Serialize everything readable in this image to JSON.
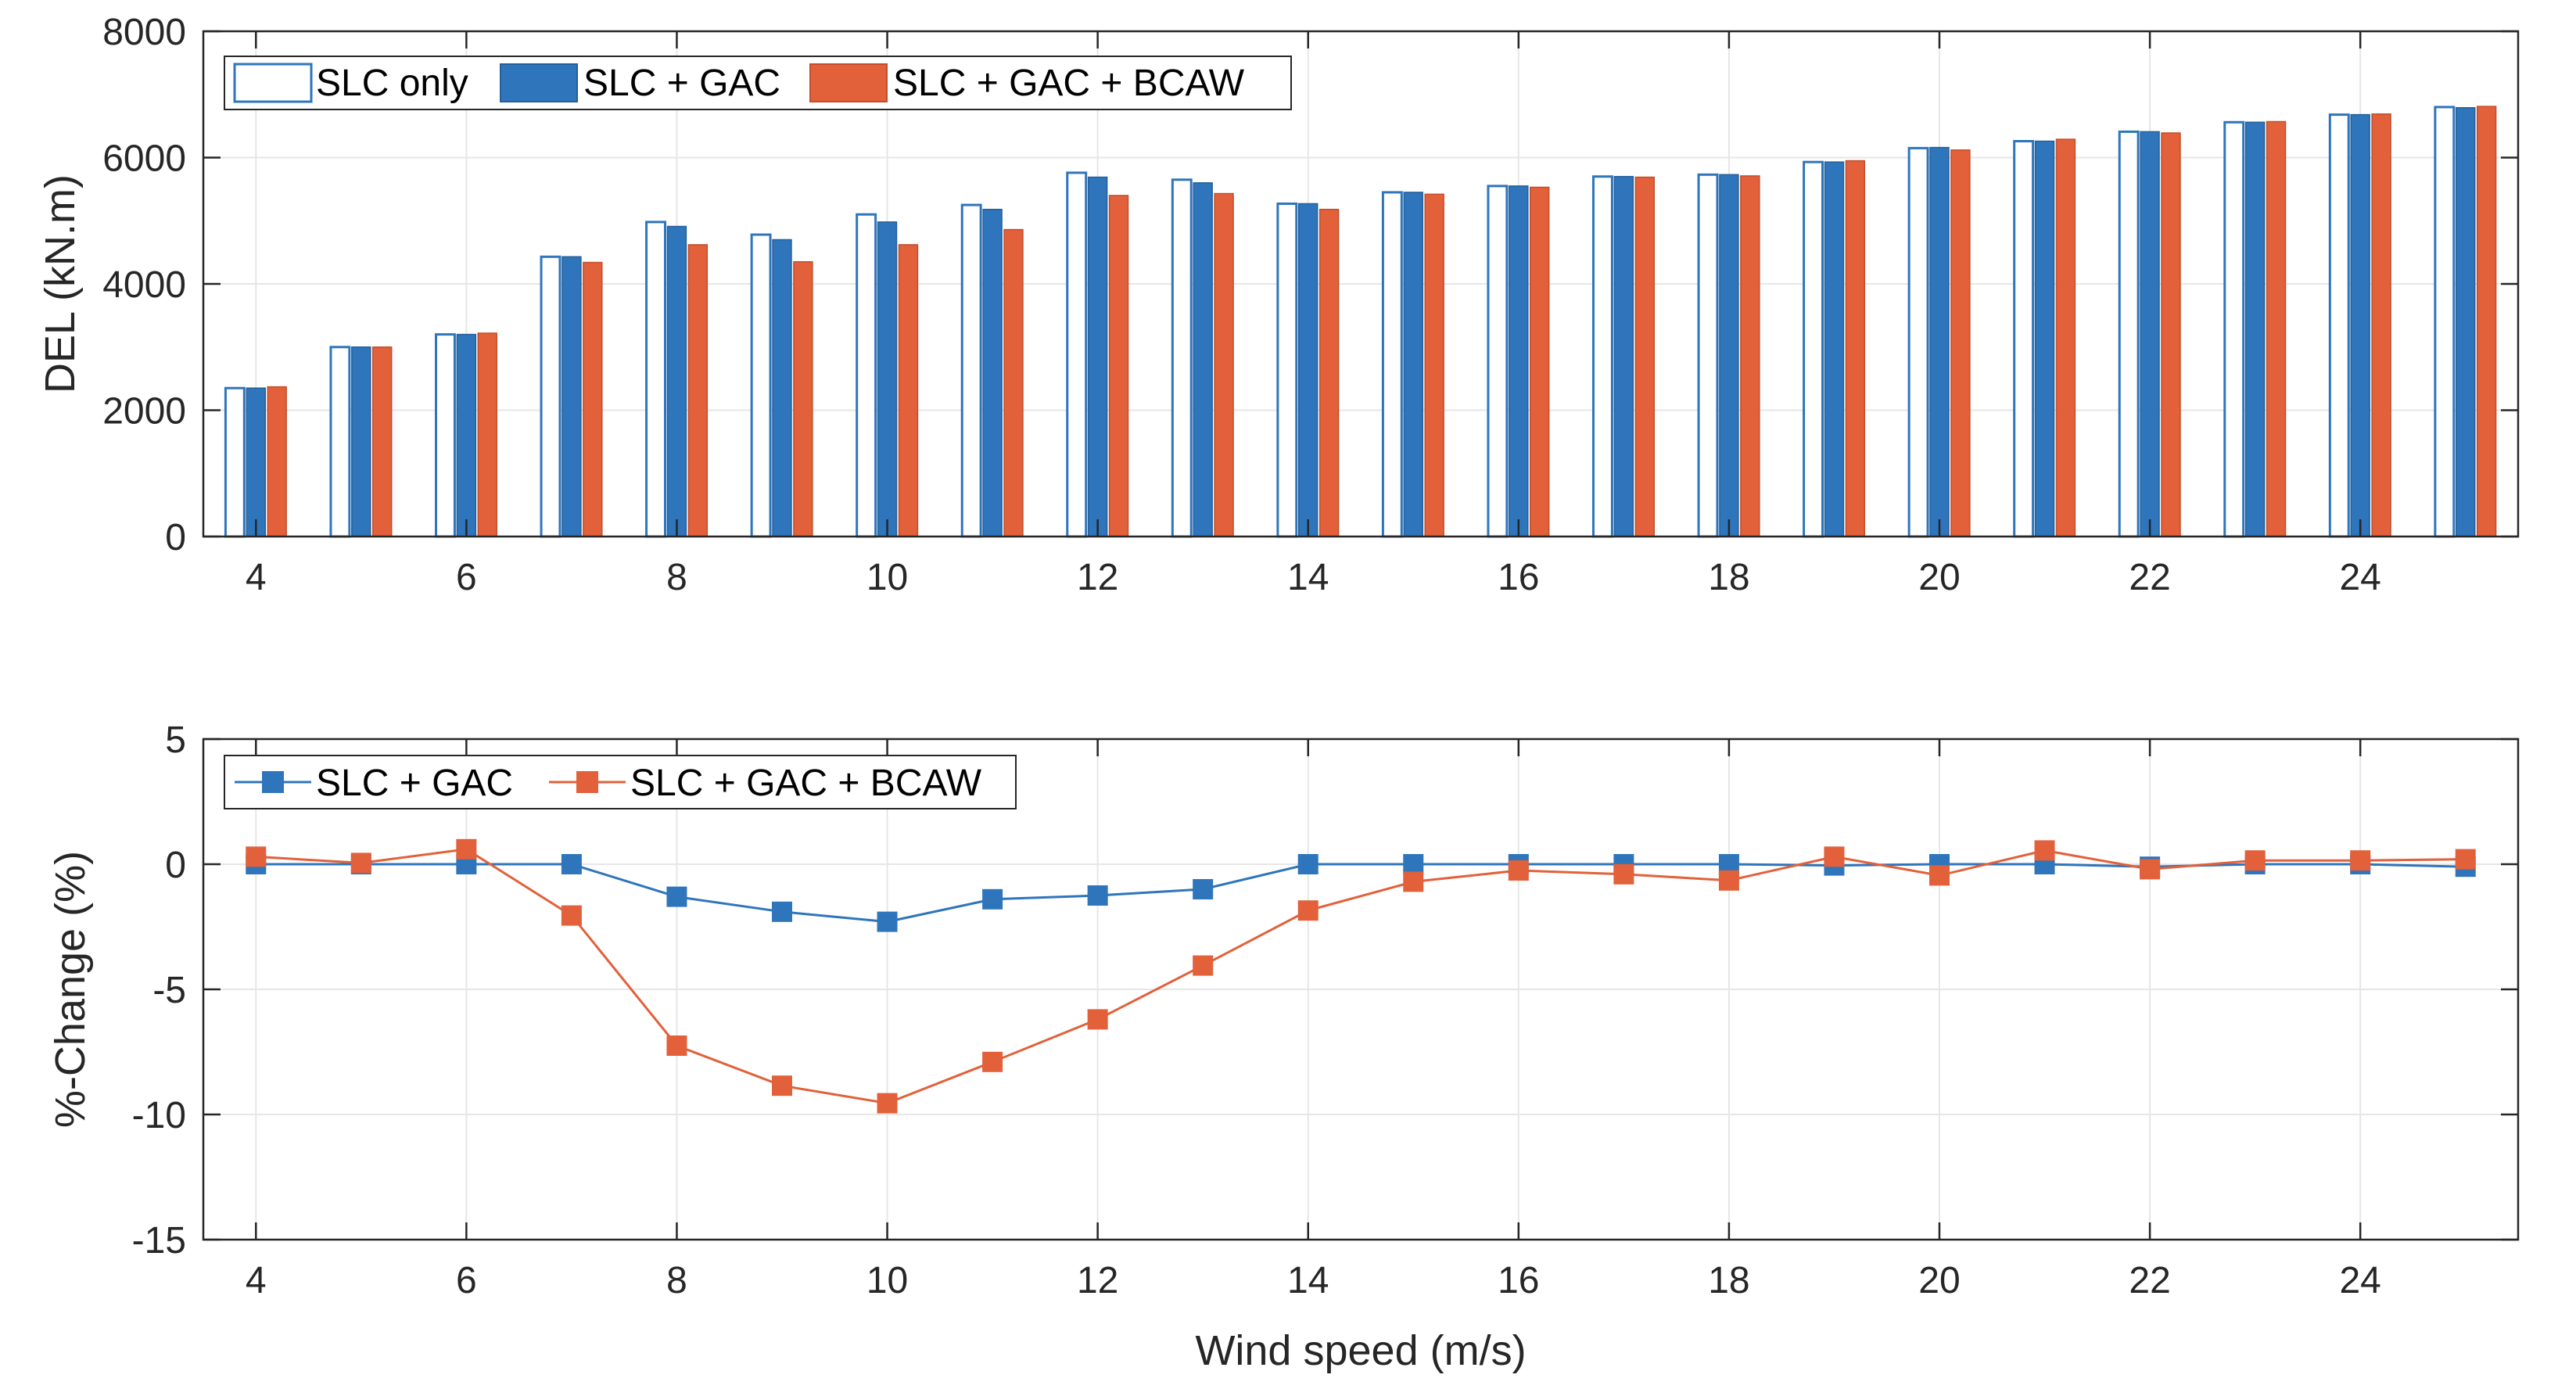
{
  "colors": {
    "slc_gac": "#2E75BC",
    "slc_gac_bcaw": "#E2603A",
    "axis": "#262626",
    "grid": "#E6E6E6"
  },
  "chart_data": [
    {
      "type": "bar",
      "title": "",
      "xlabel": "",
      "ylabel": "DEL (kN.m)",
      "xlim": [
        3.5,
        25.5
      ],
      "ylim": [
        0,
        8000
      ],
      "x_ticks": [
        4,
        6,
        8,
        10,
        12,
        14,
        16,
        18,
        20,
        22,
        24
      ],
      "y_ticks": [
        0,
        2000,
        4000,
        6000,
        8000
      ],
      "grid": true,
      "legend_position": "top-left",
      "categories": [
        4,
        5,
        6,
        7,
        8,
        9,
        10,
        11,
        12,
        13,
        14,
        15,
        16,
        17,
        18,
        19,
        20,
        21,
        22,
        23,
        24,
        25
      ],
      "series": [
        {
          "name": "SLC only",
          "style": "outline",
          "values": [
            2350,
            3000,
            3200,
            4430,
            4980,
            4780,
            5100,
            5250,
            5760,
            5650,
            5270,
            5450,
            5550,
            5700,
            5730,
            5930,
            6150,
            6260,
            6410,
            6560,
            6680,
            6800
          ]
        },
        {
          "name": "SLC + GAC",
          "style": "filled-blue",
          "values": [
            2350,
            3000,
            3200,
            4430,
            4910,
            4700,
            4980,
            5180,
            5690,
            5600,
            5270,
            5450,
            5550,
            5700,
            5730,
            5930,
            6160,
            6260,
            6410,
            6560,
            6680,
            6790
          ]
        },
        {
          "name": "SLC + GAC + BCAW",
          "style": "filled-orange",
          "values": [
            2370,
            3000,
            3220,
            4340,
            4620,
            4350,
            4620,
            4860,
            5400,
            5430,
            5180,
            5420,
            5530,
            5690,
            5710,
            5950,
            6120,
            6290,
            6390,
            6570,
            6690,
            6810
          ]
        }
      ]
    },
    {
      "type": "line",
      "title": "",
      "xlabel": "Wind speed (m/s)",
      "ylabel": "%-Change (%)",
      "xlim": [
        3.5,
        25.5
      ],
      "ylim": [
        -15,
        5
      ],
      "x_ticks": [
        4,
        6,
        8,
        10,
        12,
        14,
        16,
        18,
        20,
        22,
        24
      ],
      "y_ticks": [
        -15,
        -10,
        -5,
        0,
        5
      ],
      "grid": true,
      "legend_position": "top-left",
      "x": [
        4,
        5,
        6,
        7,
        8,
        9,
        10,
        11,
        12,
        13,
        14,
        15,
        16,
        17,
        18,
        19,
        20,
        21,
        22,
        23,
        24,
        25
      ],
      "series": [
        {
          "name": "SLC + GAC",
          "marker": "square",
          "values": [
            0,
            0,
            0,
            0,
            -1.3,
            -1.9,
            -2.3,
            -1.4,
            -1.25,
            -1.0,
            0,
            0,
            0,
            0,
            0,
            -0.05,
            0,
            0,
            -0.1,
            0,
            0,
            -0.1
          ]
        },
        {
          "name": "SLC + GAC + BCAW",
          "marker": "square",
          "values": [
            0.3,
            0.05,
            0.6,
            -2.05,
            -7.25,
            -8.85,
            -9.55,
            -7.9,
            -6.2,
            -4.05,
            -1.85,
            -0.7,
            -0.25,
            -0.4,
            -0.65,
            0.3,
            -0.45,
            0.55,
            -0.2,
            0.15,
            0.15,
            0.2
          ]
        }
      ]
    }
  ]
}
